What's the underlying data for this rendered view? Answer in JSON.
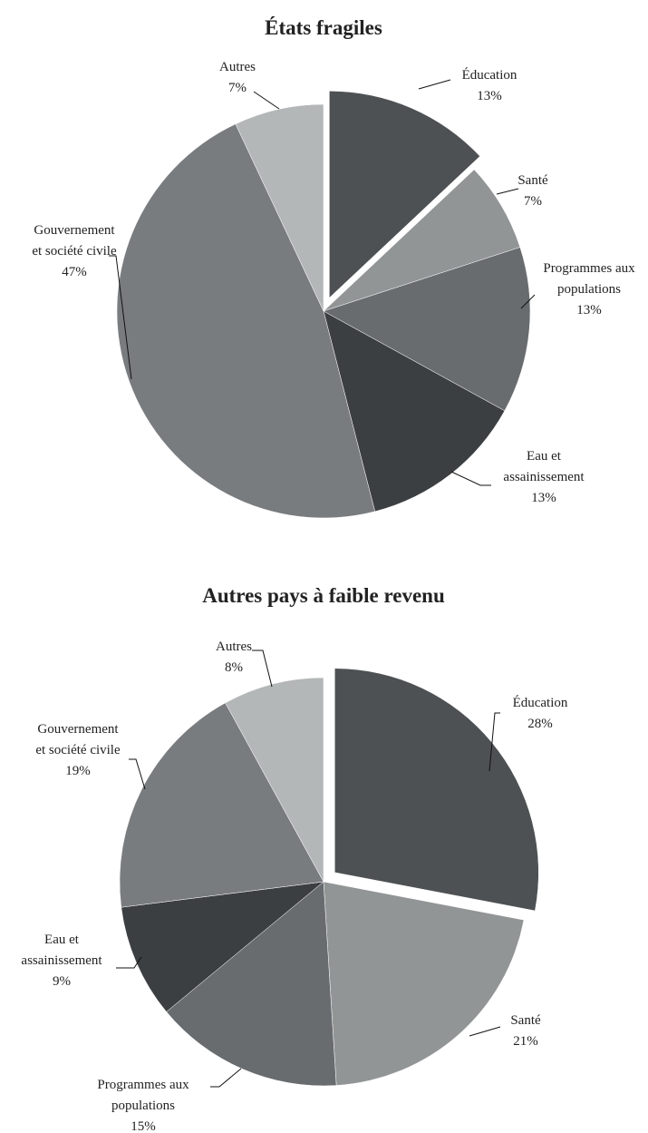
{
  "chart_data": [
    {
      "type": "pie",
      "title": "États fragiles",
      "categories": [
        "Éducation",
        "Santé",
        "Programmes aux\npopulations",
        "Eau et\nassainissement",
        "Gouvernement\net société civile",
        "Autres"
      ],
      "values": [
        13,
        7,
        13,
        13,
        47,
        7
      ],
      "value_labels": [
        "13%",
        "7%",
        "13%",
        "13%",
        "47%",
        "7%"
      ],
      "colors": [
        "#4d5153",
        "#929596",
        "#686c6f",
        "#3c3f42",
        "#797c7f",
        "#b4b7b8"
      ],
      "exploded": [
        0
      ]
    },
    {
      "type": "pie",
      "title": "Autres pays à faible revenu",
      "categories": [
        "Éducation",
        "Santé",
        "Programmes aux\npopulations",
        "Eau et\nassainissement",
        "Gouvernement\net société civile",
        "Autres"
      ],
      "values": [
        28,
        21,
        15,
        9,
        19,
        8
      ],
      "value_labels": [
        "28%",
        "21%",
        "15%",
        "9%",
        "19%",
        "8%"
      ],
      "colors": [
        "#4d5153",
        "#929596",
        "#686c6f",
        "#3c3f42",
        "#797c7f",
        "#b4b7b8"
      ],
      "exploded": [
        0
      ]
    }
  ]
}
